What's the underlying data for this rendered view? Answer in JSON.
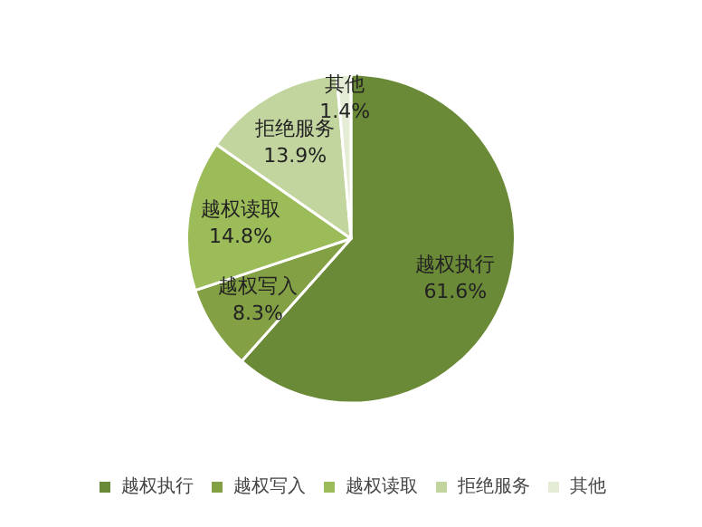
{
  "chart_data": {
    "type": "pie",
    "categories": [
      "越权执行",
      "越权写入",
      "越权读取",
      "拒绝服务",
      "其他"
    ],
    "values": [
      61.6,
      8.3,
      14.8,
      13.9,
      1.4
    ],
    "value_labels": [
      "61.6%",
      "8.3%",
      "14.8%",
      "13.9%",
      "1.4%"
    ],
    "colors": [
      "#6a8a37",
      "#84a044",
      "#9cbc59",
      "#c3d59f",
      "#e4ecd6"
    ],
    "legend": "bottom"
  }
}
